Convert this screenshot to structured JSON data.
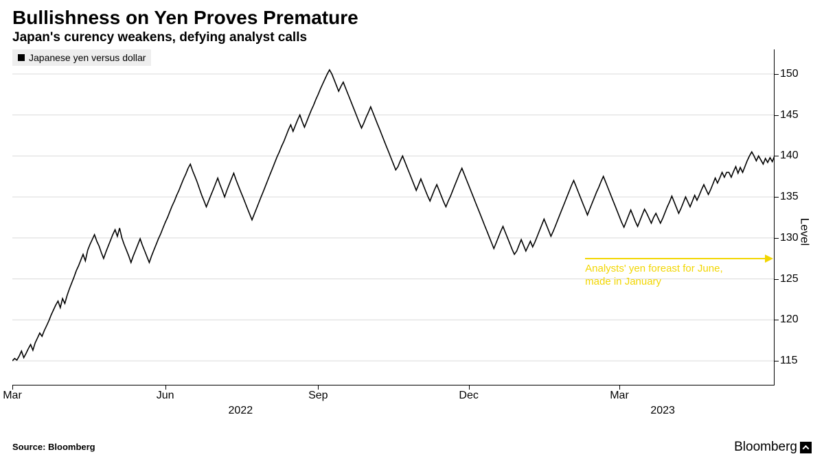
{
  "title": "Bullishness on Yen Proves Premature",
  "subtitle": "Japan's curency weakens, defying analyst calls",
  "legend": {
    "label": "Japanese yen versus dollar",
    "swatch_color": "#000000"
  },
  "source": "Source: Bloomberg",
  "brand": "Bloomberg",
  "annotation": {
    "text_line1": "Analysts' yen foreast for June,",
    "text_line2": "made in January",
    "color": "#f2d600",
    "arrow_y_value": 127.5
  },
  "chart": {
    "type": "line",
    "line_color": "#000000",
    "line_width": 1.6,
    "background_color": "#ffffff",
    "grid_color": "#d9d9d9",
    "y_axis": {
      "label": "Level",
      "min": 112,
      "max": 153,
      "ticks": [
        115,
        120,
        125,
        130,
        135,
        140,
        145,
        150
      ]
    },
    "x_axis": {
      "ticks": [
        {
          "i": 0,
          "label": "Mar",
          "level": 1
        },
        {
          "i": 67,
          "label": "Jun",
          "level": 1
        },
        {
          "i": 100,
          "label": "2022",
          "level": 2
        },
        {
          "i": 134,
          "label": "Sep",
          "level": 1
        },
        {
          "i": 200,
          "label": "Dec",
          "level": 1
        },
        {
          "i": 266,
          "label": "Mar",
          "level": 1
        },
        {
          "i": 285,
          "label": "2023",
          "level": 2
        }
      ],
      "n_points": 335
    },
    "series": [
      115.0,
      115.3,
      115.1,
      115.6,
      116.2,
      115.4,
      115.9,
      116.5,
      117.0,
      116.3,
      117.2,
      117.8,
      118.4,
      118.0,
      118.7,
      119.3,
      119.9,
      120.6,
      121.2,
      121.8,
      122.3,
      121.5,
      122.6,
      122.0,
      123.0,
      123.8,
      124.5,
      125.2,
      126.0,
      126.6,
      127.3,
      128.0,
      127.2,
      128.5,
      129.2,
      129.8,
      130.4,
      129.6,
      129.0,
      128.2,
      127.5,
      128.3,
      129.0,
      129.7,
      130.4,
      131.0,
      130.2,
      131.2,
      130.0,
      129.2,
      128.5,
      127.8,
      127.0,
      127.8,
      128.5,
      129.2,
      129.9,
      129.1,
      128.4,
      127.7,
      127.0,
      127.8,
      128.5,
      129.2,
      129.9,
      130.5,
      131.2,
      131.9,
      132.5,
      133.2,
      133.9,
      134.5,
      135.2,
      135.8,
      136.5,
      137.2,
      137.8,
      138.5,
      139.0,
      138.2,
      137.5,
      136.8,
      136.0,
      135.2,
      134.5,
      133.8,
      134.5,
      135.2,
      135.9,
      136.6,
      137.3,
      136.5,
      135.8,
      135.0,
      135.8,
      136.5,
      137.2,
      137.9,
      137.1,
      136.4,
      135.7,
      135.0,
      134.3,
      133.6,
      132.9,
      132.2,
      132.9,
      133.6,
      134.3,
      135.0,
      135.7,
      136.4,
      137.1,
      137.8,
      138.5,
      139.2,
      139.9,
      140.5,
      141.2,
      141.8,
      142.5,
      143.2,
      143.8,
      143.0,
      143.7,
      144.4,
      145.0,
      144.2,
      143.5,
      144.2,
      144.9,
      145.6,
      146.2,
      146.9,
      147.5,
      148.2,
      148.8,
      149.4,
      150.0,
      150.5,
      150.0,
      149.3,
      148.6,
      147.9,
      148.5,
      149.0,
      148.3,
      147.6,
      146.9,
      146.2,
      145.5,
      144.8,
      144.1,
      143.4,
      144.0,
      144.7,
      145.3,
      146.0,
      145.3,
      144.6,
      143.9,
      143.2,
      142.5,
      141.8,
      141.1,
      140.4,
      139.7,
      139.0,
      138.3,
      138.7,
      139.4,
      140.0,
      139.3,
      138.6,
      137.9,
      137.2,
      136.5,
      135.8,
      136.5,
      137.2,
      136.5,
      135.8,
      135.1,
      134.5,
      135.2,
      135.9,
      136.5,
      135.8,
      135.1,
      134.4,
      133.8,
      134.5,
      135.1,
      135.8,
      136.5,
      137.2,
      137.9,
      138.5,
      137.8,
      137.1,
      136.4,
      135.7,
      135.0,
      134.3,
      133.6,
      132.9,
      132.2,
      131.5,
      130.8,
      130.1,
      129.4,
      128.7,
      129.4,
      130.1,
      130.8,
      131.4,
      130.7,
      130.0,
      129.3,
      128.6,
      128.0,
      128.4,
      129.1,
      129.8,
      129.1,
      128.4,
      129.0,
      129.6,
      128.9,
      129.5,
      130.2,
      130.9,
      131.6,
      132.3,
      131.6,
      130.9,
      130.2,
      130.8,
      131.5,
      132.2,
      132.9,
      133.6,
      134.3,
      135.0,
      135.7,
      136.4,
      137.0,
      136.3,
      135.6,
      134.9,
      134.2,
      133.5,
      132.8,
      133.5,
      134.2,
      134.9,
      135.6,
      136.2,
      136.9,
      137.5,
      136.8,
      136.1,
      135.4,
      134.7,
      134.0,
      133.3,
      132.6,
      131.9,
      131.3,
      132.0,
      132.7,
      133.4,
      132.7,
      132.0,
      131.4,
      132.1,
      132.8,
      133.5,
      133.0,
      132.4,
      131.8,
      132.5,
      133.0,
      132.4,
      131.8,
      132.4,
      133.1,
      133.8,
      134.4,
      135.1,
      134.4,
      133.7,
      133.0,
      133.6,
      134.3,
      135.0,
      134.4,
      133.8,
      134.5,
      135.2,
      134.6,
      135.2,
      135.9,
      136.5,
      135.9,
      135.3,
      135.9,
      136.6,
      137.3,
      136.7,
      137.3,
      138.0,
      137.4,
      138.0,
      138.0,
      137.4,
      138.1,
      138.7,
      137.9,
      138.6,
      138.0,
      138.7,
      139.4,
      140.0,
      140.5,
      140.0,
      139.4,
      140.0,
      139.5,
      139.0,
      139.7,
      139.2,
      139.8,
      139.3,
      140.0,
      139.5
    ]
  }
}
